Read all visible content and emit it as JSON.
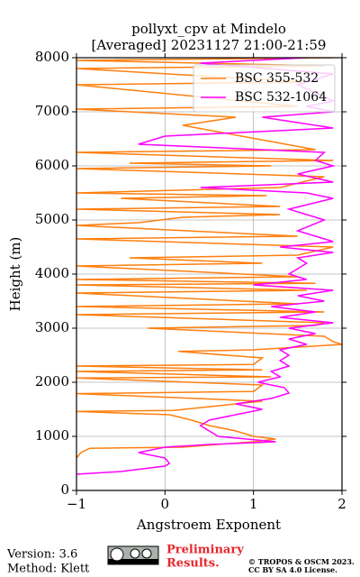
{
  "chart_data": {
    "type": "line",
    "title": "pollyxt_cpv at Mindelo",
    "subtitle": "[Averaged] 20231127 21:00-21:59",
    "x_label": "Angstroem Exponent",
    "y_label": "Height (m)",
    "xlim": [
      -1,
      2
    ],
    "ylim": [
      0,
      8000
    ],
    "xticks": [
      {
        "value": -1,
        "label": "−1"
      },
      0,
      1,
      2
    ],
    "yticks": [
      0,
      1000,
      2000,
      3000,
      4000,
      5000,
      6000,
      7000,
      8000
    ],
    "grid": true,
    "legend": "upper right",
    "series": [
      {
        "name": "BSC 355-532",
        "color": "#ff7f0e",
        "y": [
          600,
          700,
          780,
          800,
          900,
          950,
          1000,
          1100,
          1200,
          1300,
          1400,
          1460,
          1480,
          1600,
          1650,
          1790,
          1830,
          1950,
          2080,
          2100,
          2200,
          2230,
          2300,
          2330,
          2450,
          2570,
          2600,
          2700,
          2750,
          2850,
          3000,
          3050,
          3100,
          3250,
          3300,
          3400,
          3450,
          3650,
          3700,
          3800,
          3830,
          3900,
          3950,
          4150,
          4200,
          4300,
          4350,
          4500,
          4650,
          4700,
          4900,
          4950,
          5050,
          5100,
          5200,
          5250,
          5400,
          5450,
          5500,
          5600,
          5800,
          5950,
          6000,
          6050,
          6100,
          6250,
          6300,
          6750,
          6900,
          7050,
          7100,
          7500,
          7550,
          7800,
          7850,
          7950,
          8000
        ],
        "x": [
          -1,
          -0.95,
          -0.85,
          0.2,
          1.0,
          1.25,
          1.0,
          0.8,
          0.5,
          0.3,
          0.05,
          -1,
          0.1,
          0.8,
          1.1,
          -1,
          1.0,
          1.1,
          -1,
          1.2,
          -1,
          1.1,
          -1,
          1.0,
          1.1,
          0.15,
          1.0,
          2.0,
          1.9,
          1.8,
          -0.2,
          1.7,
          1.8,
          -1,
          1.8,
          -1,
          1.5,
          -1,
          1.6,
          -1,
          1.7,
          -1,
          1.5,
          -1,
          1.1,
          -0.4,
          1.5,
          1.9,
          -1,
          1.5,
          -1,
          -0.3,
          0.2,
          1.3,
          -1,
          1.3,
          -0.5,
          1.15,
          -1,
          1.3,
          1.8,
          -1,
          1.2,
          -0.4,
          1.9,
          -1,
          1.7,
          0.2,
          0.8,
          -1,
          1.5,
          -1,
          1.6,
          -1,
          1.8,
          -1,
          1.9
        ]
      },
      {
        "name": "BSC 532-1064",
        "color": "#ff00ff",
        "y": [
          300,
          350,
          450,
          500,
          600,
          700,
          800,
          850,
          900,
          1000,
          1100,
          1200,
          1300,
          1400,
          1500,
          1600,
          1700,
          1800,
          1900,
          2000,
          2100,
          2200,
          2300,
          2400,
          2500,
          2600,
          2700,
          2800,
          2900,
          3000,
          3100,
          3200,
          3300,
          3400,
          3500,
          3600,
          3700,
          3800,
          3900,
          4000,
          4200,
          4300,
          4400,
          4500,
          4600,
          4800,
          5000,
          5200,
          5400,
          5500,
          5600,
          5700,
          5850,
          6000,
          6100,
          6250,
          6400,
          6550,
          6700,
          6900,
          7000,
          7100,
          7200,
          7500,
          7700,
          7900,
          8000
        ],
        "x": [
          -1,
          -0.5,
          0.0,
          0.05,
          0.0,
          -0.3,
          0.0,
          0.5,
          1.25,
          0.6,
          0.5,
          0.4,
          0.5,
          0.8,
          1.1,
          0.8,
          1.2,
          1.4,
          1.35,
          1.05,
          1.3,
          1.2,
          1.4,
          1.3,
          1.4,
          1.3,
          1.6,
          1.4,
          1.7,
          1.4,
          1.9,
          1.3,
          1.7,
          1.2,
          1.8,
          1.5,
          1.9,
          1.0,
          1.6,
          1.4,
          1.6,
          1.5,
          1.9,
          1.3,
          1.9,
          1.5,
          1.8,
          1.4,
          1.9,
          1.6,
          0.4,
          1.9,
          1.5,
          1.9,
          1.7,
          1.8,
          -0.3,
          0.0,
          1.9,
          1.1,
          1.9,
          1.6,
          1.9,
          1.5,
          1.9,
          0.4,
          1.6
        ]
      }
    ]
  },
  "footer": {
    "version": "Version: 3.6",
    "method": "Method: Klett",
    "preliminary": [
      "Preliminary",
      "Results."
    ],
    "copyright": [
      "© TROPOS & OSCM 2023.",
      "CC BY SA 4.0 License."
    ]
  }
}
